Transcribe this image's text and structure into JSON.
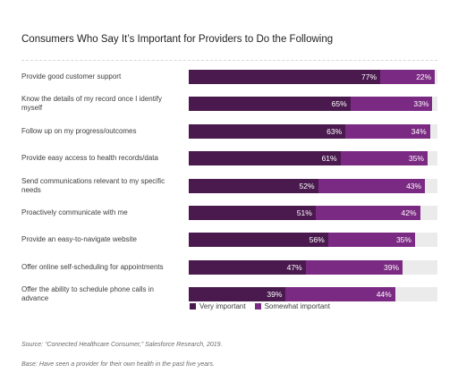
{
  "chart_data": {
    "type": "bar",
    "stacked": true,
    "orientation": "horizontal",
    "title": "Consumers Who Say It’s Important for Providers to Do the Following",
    "categories": [
      "Provide good customer support",
      "Know the details of my record once I identify myself",
      "Follow up on my progress/outcomes",
      "Provide easy access to health records/data",
      "Send communications relevant to my specific needs",
      "Proactively communicate with me",
      "Provide an easy-to-navigate website",
      "Offer online self-scheduling for appointments",
      "Offer the ability to schedule phone calls in advance"
    ],
    "series": [
      {
        "name": "Very important",
        "color": "#4a1a4e",
        "values": [
          77,
          65,
          63,
          61,
          52,
          51,
          56,
          47,
          39
        ]
      },
      {
        "name": "Somewhat important",
        "color": "#7a2a82",
        "values": [
          22,
          33,
          34,
          35,
          43,
          42,
          35,
          39,
          44
        ]
      }
    ],
    "value_suffix": "%",
    "xlim": [
      0,
      100
    ],
    "legend_position": "bottom",
    "grid": false
  },
  "footnotes": {
    "source": "Source: “Connected Healthcare Consumer,” Salesforce Research, 2019.",
    "base": "Base: Have seen a provider for their own health in the past five years."
  }
}
